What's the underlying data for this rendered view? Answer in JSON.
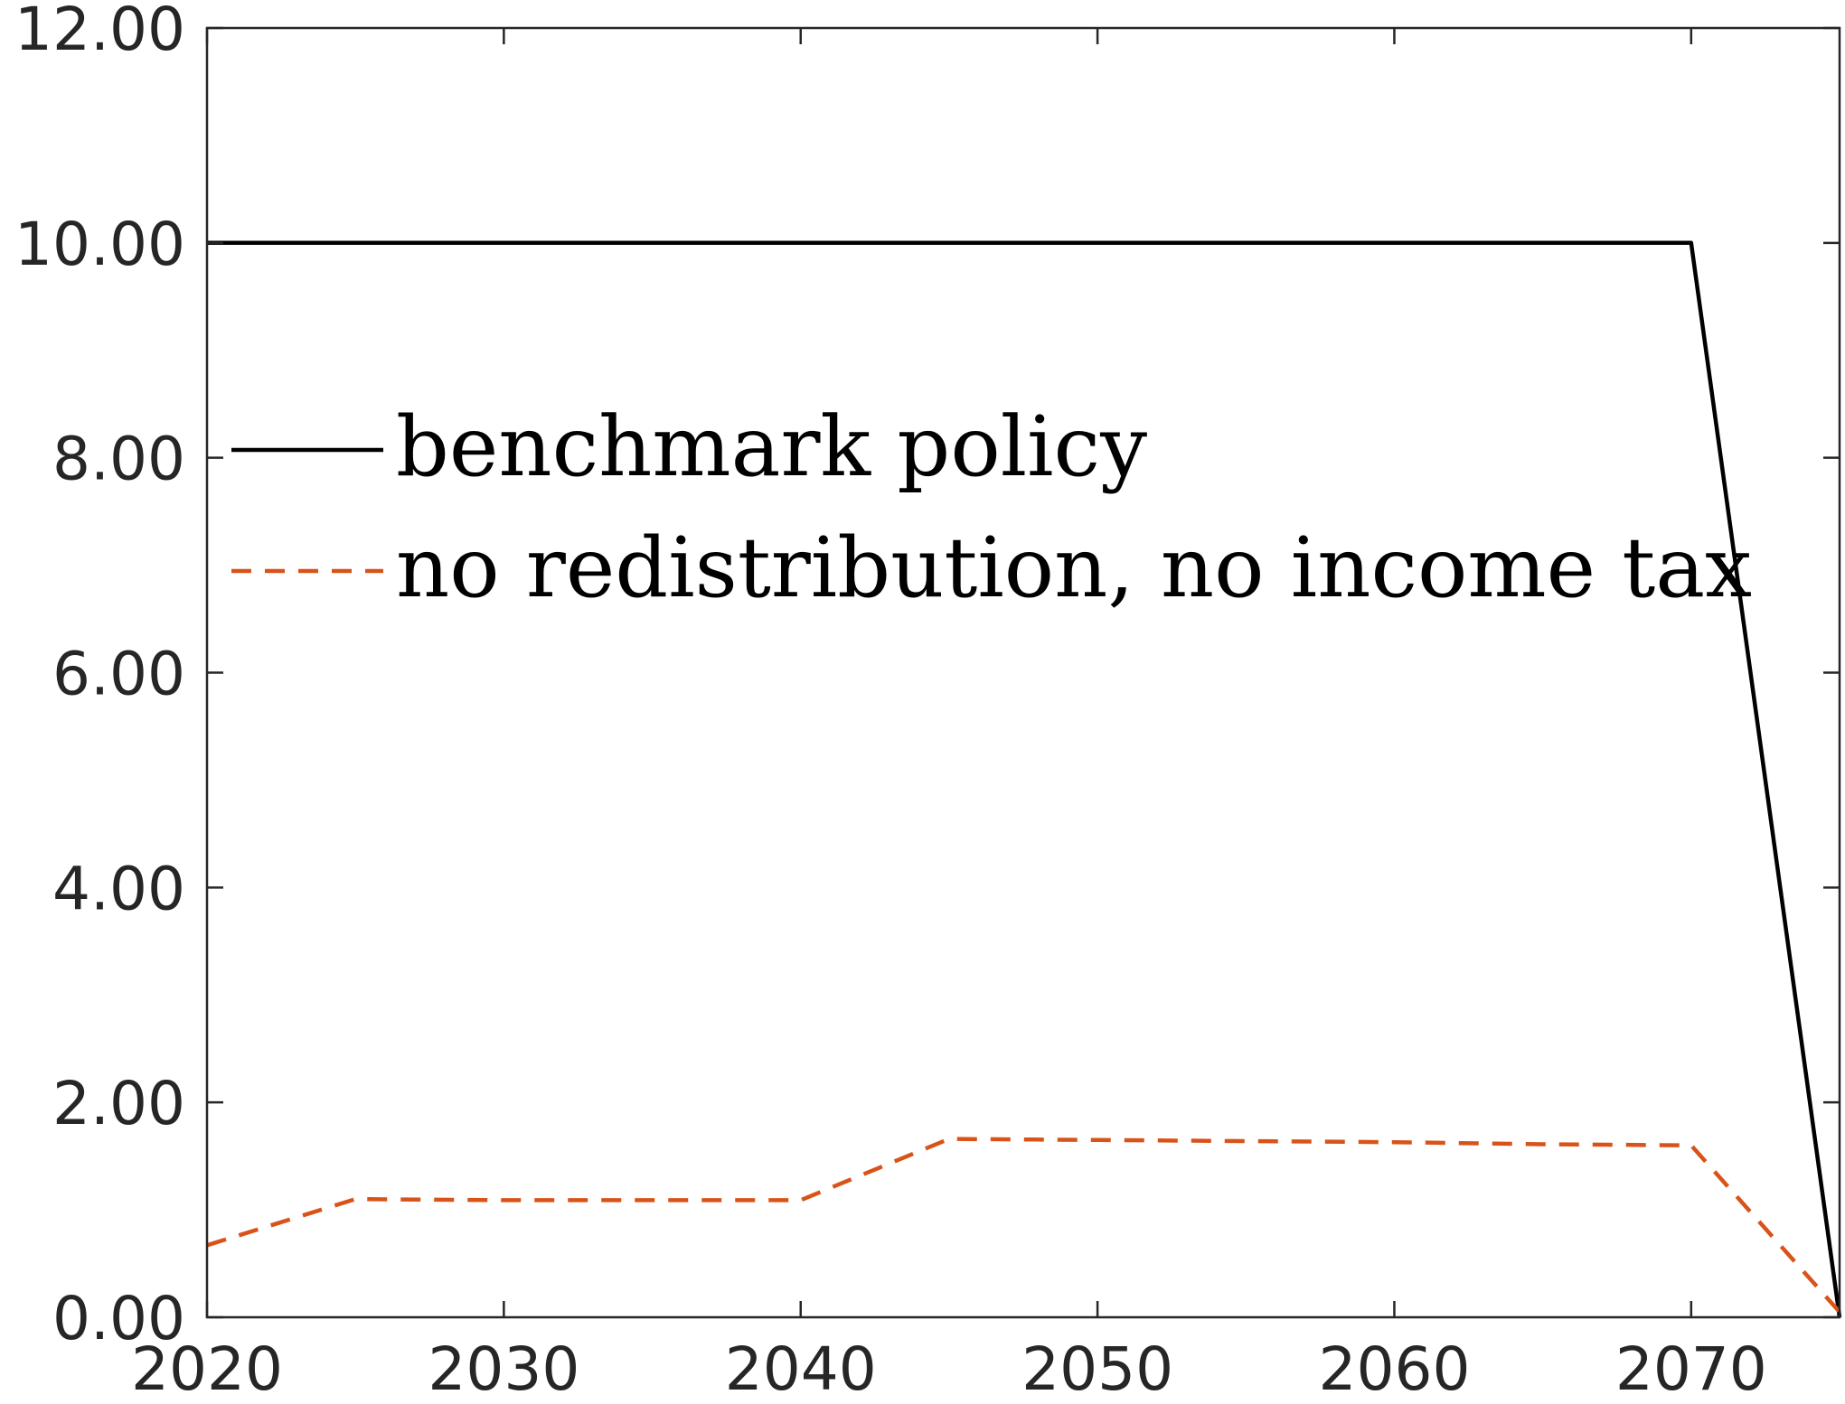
{
  "chart_data": {
    "type": "line",
    "title": "",
    "xlabel": "",
    "ylabel": "",
    "xlim": [
      2020,
      2075
    ],
    "ylim": [
      0,
      12
    ],
    "x_ticks": [
      2020,
      2030,
      2040,
      2050,
      2060,
      2070
    ],
    "x_tick_labels": [
      "2020",
      "2030",
      "2040",
      "2050",
      "2060",
      "2070"
    ],
    "y_ticks": [
      0,
      2,
      4,
      6,
      8,
      10,
      12
    ],
    "y_tick_labels": [
      "0.00",
      "2.00",
      "4.00",
      "6.00",
      "8.00",
      "10.00",
      "12.00"
    ],
    "grid": false,
    "legend_position": "center-left",
    "series": [
      {
        "name": "benchmark policy",
        "color": "#000000",
        "style": "solid",
        "x": [
          2020,
          2025,
          2030,
          2035,
          2040,
          2045,
          2050,
          2055,
          2060,
          2065,
          2070,
          2075
        ],
        "y": [
          10,
          10,
          10,
          10,
          10,
          10,
          10,
          10,
          10,
          10,
          10,
          0
        ]
      },
      {
        "name": "no redistribution, no income tax",
        "color": "#d95319",
        "style": "dashed",
        "x": [
          2020,
          2025,
          2030,
          2035,
          2040,
          2045,
          2050,
          2055,
          2060,
          2065,
          2070,
          2075
        ],
        "y": [
          0.67,
          1.1,
          1.09,
          1.09,
          1.09,
          1.66,
          1.65,
          1.64,
          1.63,
          1.61,
          1.6,
          0.05
        ]
      }
    ]
  }
}
